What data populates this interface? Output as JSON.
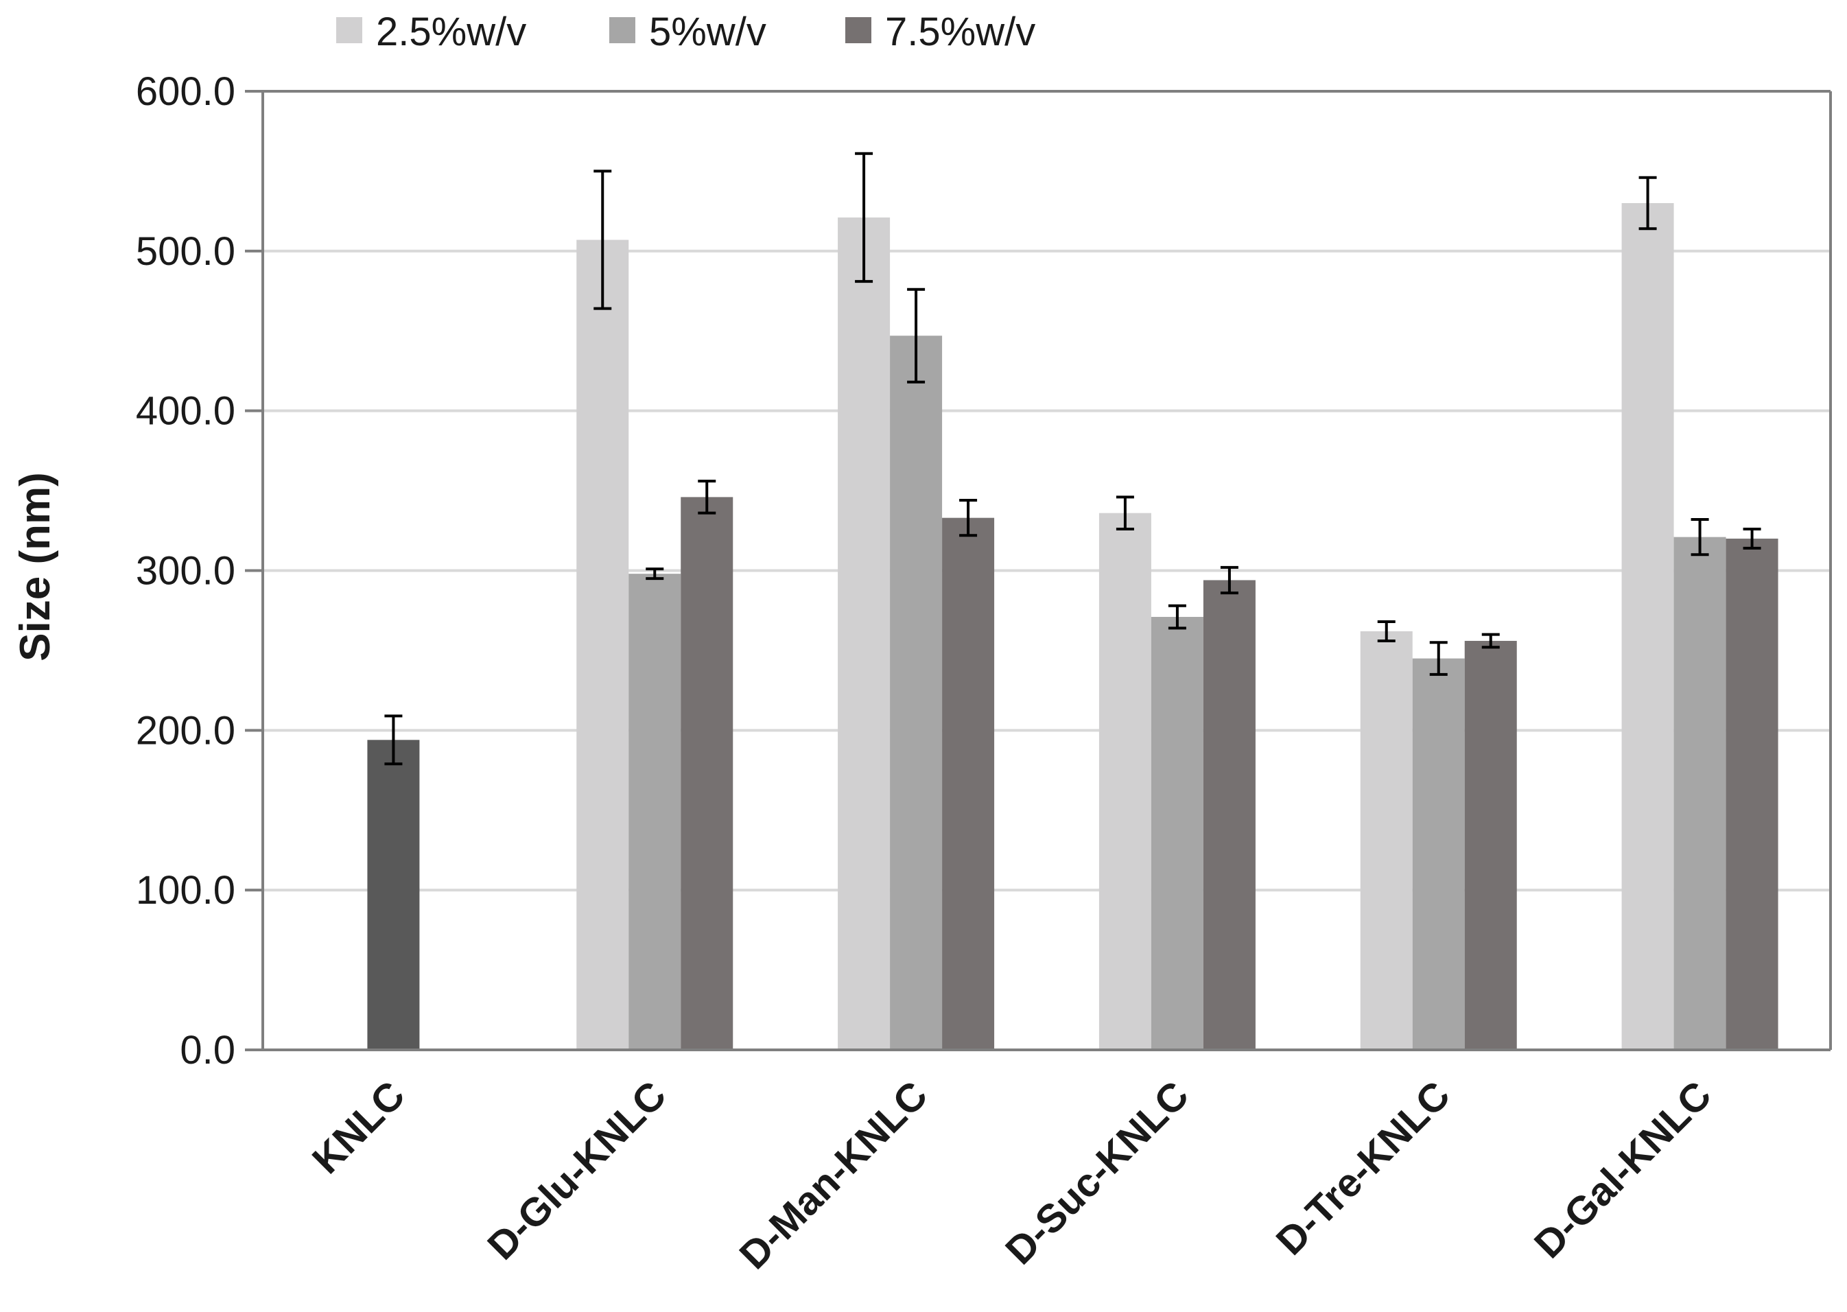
{
  "chart_data": {
    "type": "bar",
    "title": "",
    "xlabel": "",
    "ylabel": "Size (nm)",
    "ylim": [
      0,
      600
    ],
    "yticks": [
      "0.0",
      "100.0",
      "200.0",
      "300.0",
      "400.0",
      "500.0",
      "600.0"
    ],
    "ytick_values": [
      0,
      100,
      200,
      300,
      400,
      500,
      600
    ],
    "grid": true,
    "legend_position": "top",
    "categories": [
      "KNLC",
      "D-Glu-KNLC",
      "D-Man-KNLC",
      "D-Suc-KNLC",
      "D-Tre-KNLC",
      "D-Gal-KNLC"
    ],
    "series": [
      {
        "name": "2.5%w/v",
        "color": "#d1d0d1",
        "values": [
          null,
          507,
          521,
          336,
          262,
          530
        ],
        "errors": [
          null,
          43,
          40,
          10,
          6,
          16
        ]
      },
      {
        "name": "5%w/v",
        "color": "#a6a6a6",
        "values": [
          null,
          298,
          447,
          271,
          245,
          321
        ],
        "errors": [
          null,
          3,
          29,
          7,
          10,
          11
        ]
      },
      {
        "name": "7.5%w/v",
        "color": "#767171",
        "values": [
          null,
          346,
          333,
          294,
          256,
          320
        ],
        "errors": [
          null,
          10,
          11,
          8,
          4,
          6
        ]
      }
    ],
    "standalone_bars": [
      {
        "category": "KNLC",
        "value": 194,
        "error": 15,
        "color": "#595959"
      }
    ]
  }
}
